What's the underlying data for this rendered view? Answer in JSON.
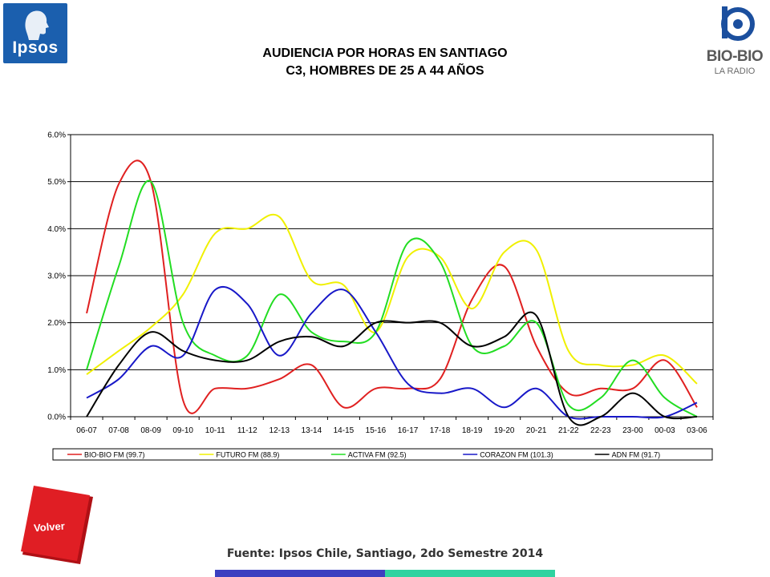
{
  "logos": {
    "ipsos": "Ipsos",
    "biobio": "BIO-BIO",
    "biobio_sub": "LA RADIO"
  },
  "title": {
    "line1": "AUDIENCIA POR HORAS EN SANTIAGO",
    "line2": "C3, HOMBRES DE 25 A 44 AÑOS"
  },
  "buttons": {
    "volver": "Volver"
  },
  "source": "Fuente: Ipsos Chile, Santiago, 2do Semestre 2014",
  "colors": {
    "footer_left": "#3b3fc0",
    "footer_right": "#2fd3a0",
    "volver": "#e01e24"
  },
  "chart_data": {
    "type": "line",
    "categories": [
      "06-07",
      "07-08",
      "08-09",
      "09-10",
      "10-11",
      "11-12",
      "12-13",
      "13-14",
      "14-15",
      "15-16",
      "16-17",
      "17-18",
      "18-19",
      "19-20",
      "20-21",
      "21-22",
      "22-23",
      "23-00",
      "00-03",
      "03-06"
    ],
    "yticks": [
      "6.0%",
      "5.0%",
      "4.0%",
      "3.0%",
      "2.0%",
      "1.0%",
      "0.0%"
    ],
    "ylim": [
      0,
      6
    ],
    "grid": true,
    "legend_position": "bottom",
    "series": [
      {
        "name": "BIO-BIO FM (99.7)",
        "color": "#e02020",
        "values": [
          2.2,
          4.95,
          5.0,
          0.35,
          0.6,
          0.6,
          0.8,
          1.1,
          0.2,
          0.6,
          0.6,
          0.8,
          2.5,
          3.2,
          1.5,
          0.5,
          0.6,
          0.6,
          1.2,
          0.2
        ]
      },
      {
        "name": "FUTURO FM (88.9)",
        "color": "#f0f000",
        "values": [
          0.9,
          1.4,
          1.9,
          2.6,
          3.9,
          4.0,
          4.25,
          2.9,
          2.8,
          1.8,
          3.4,
          3.4,
          2.3,
          3.5,
          3.55,
          1.4,
          1.1,
          1.1,
          1.3,
          0.7
        ]
      },
      {
        "name": "ACTIVA FM (92.5)",
        "color": "#22dd22",
        "values": [
          1.0,
          3.2,
          5.0,
          2.0,
          1.3,
          1.3,
          2.6,
          1.8,
          1.6,
          1.8,
          3.7,
          3.3,
          1.5,
          1.5,
          2.0,
          0.25,
          0.4,
          1.2,
          0.4,
          0.0
        ]
      },
      {
        "name": "CORAZON FM (101.3)",
        "color": "#1818c8",
        "values": [
          0.4,
          0.8,
          1.5,
          1.3,
          2.7,
          2.4,
          1.3,
          2.2,
          2.7,
          1.8,
          0.7,
          0.5,
          0.6,
          0.2,
          0.6,
          0.0,
          0.0,
          0.0,
          0.0,
          0.3
        ]
      },
      {
        "name": "ADN FM (91.7)",
        "color": "#000000",
        "values": [
          0.0,
          1.1,
          1.8,
          1.4,
          1.2,
          1.2,
          1.6,
          1.7,
          1.5,
          2.0,
          2.0,
          2.0,
          1.5,
          1.7,
          2.15,
          0.0,
          0.0,
          0.5,
          0.0,
          0.0
        ]
      }
    ]
  }
}
